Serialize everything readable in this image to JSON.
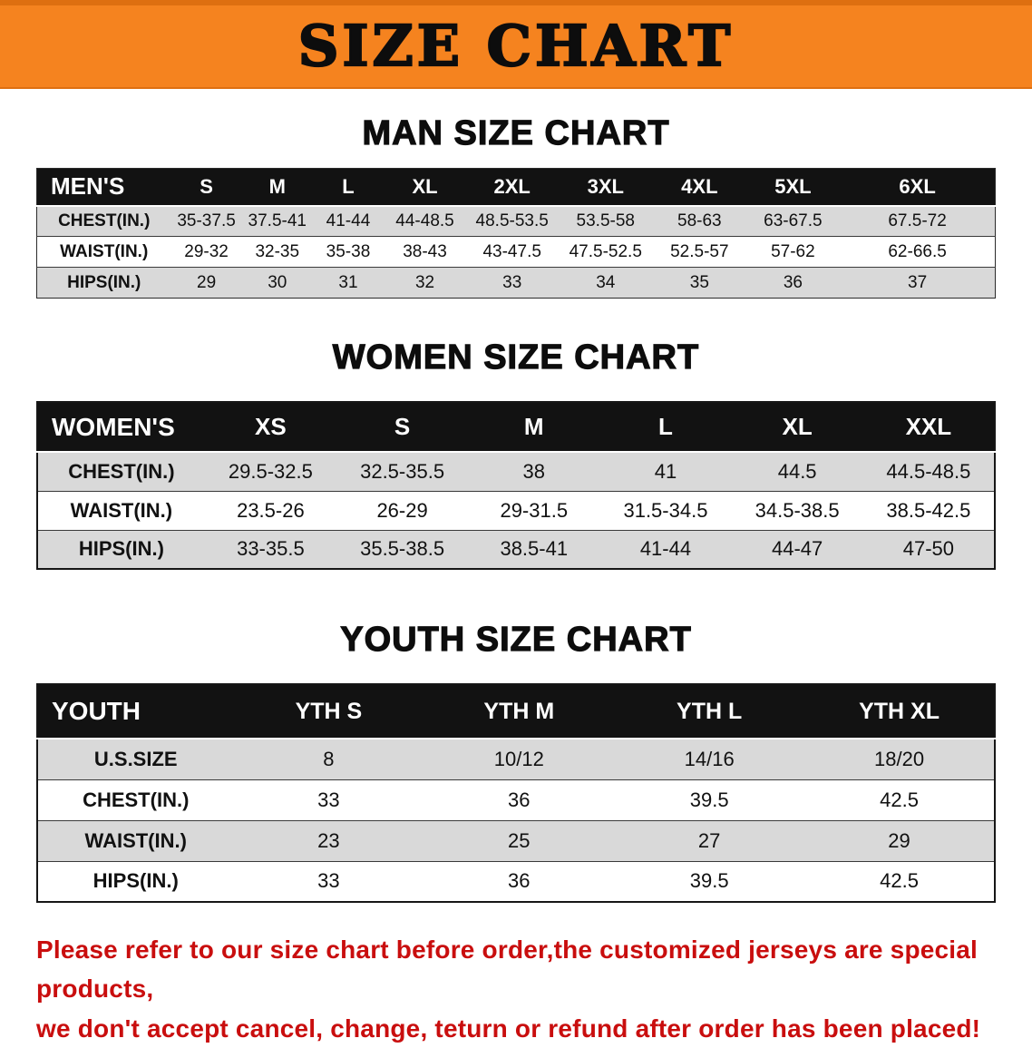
{
  "banner": {
    "title": "SIZE CHART"
  },
  "colors": {
    "banner_bg": "#F5831F",
    "table_header_bg": "#121212",
    "row_shaded": "#D9D9D9",
    "notice_text": "#C90E0E"
  },
  "sections": [
    {
      "heading": "MAN SIZE CHART",
      "table": {
        "header": [
          "MEN'S",
          "S",
          "M",
          "L",
          "XL",
          "2XL",
          "3XL",
          "4XL",
          "5XL",
          "6XL"
        ],
        "rows": [
          [
            "CHEST(IN.)",
            "35-37.5",
            "37.5-41",
            "41-44",
            "44-48.5",
            "48.5-53.5",
            "53.5-58",
            "58-63",
            "63-67.5",
            "67.5-72"
          ],
          [
            "WAIST(IN.)",
            "29-32",
            "32-35",
            "35-38",
            "38-43",
            "43-47.5",
            "47.5-52.5",
            "52.5-57",
            "57-62",
            "62-66.5"
          ],
          [
            "HIPS(IN.)",
            "29",
            "30",
            "31",
            "32",
            "33",
            "34",
            "35",
            "36",
            "37"
          ]
        ],
        "shaded_rows": [
          0,
          2
        ]
      }
    },
    {
      "heading": "WOMEN SIZE CHART",
      "table": {
        "header": [
          "WOMEN'S",
          "XS",
          "S",
          "M",
          "L",
          "XL",
          "XXL"
        ],
        "rows": [
          [
            "CHEST(IN.)",
            "29.5-32.5",
            "32.5-35.5",
            "38",
            "41",
            "44.5",
            "44.5-48.5"
          ],
          [
            "WAIST(IN.)",
            "23.5-26",
            "26-29",
            "29-31.5",
            "31.5-34.5",
            "34.5-38.5",
            "38.5-42.5"
          ],
          [
            "HIPS(IN.)",
            "33-35.5",
            "35.5-38.5",
            "38.5-41",
            "41-44",
            "44-47",
            "47-50"
          ]
        ],
        "shaded_rows": [
          0,
          2
        ]
      }
    },
    {
      "heading": "YOUTH SIZE CHART",
      "table": {
        "header": [
          "YOUTH",
          "YTH S",
          "YTH M",
          "YTH L",
          "YTH XL"
        ],
        "rows": [
          [
            "U.S.SIZE",
            "8",
            "10/12",
            "14/16",
            "18/20"
          ],
          [
            "CHEST(IN.)",
            "33",
            "36",
            "39.5",
            "42.5"
          ],
          [
            "WAIST(IN.)",
            "23",
            "25",
            "27",
            "29"
          ],
          [
            "HIPS(IN.)",
            "33",
            "36",
            "39.5",
            "42.5"
          ]
        ],
        "shaded_rows": [
          0,
          2
        ]
      }
    }
  ],
  "notice": {
    "line1": "Please refer to our size chart before order,the customized jerseys are special products,",
    "line2": "we don't accept cancel, change, teturn or refund after order has been placed!"
  }
}
